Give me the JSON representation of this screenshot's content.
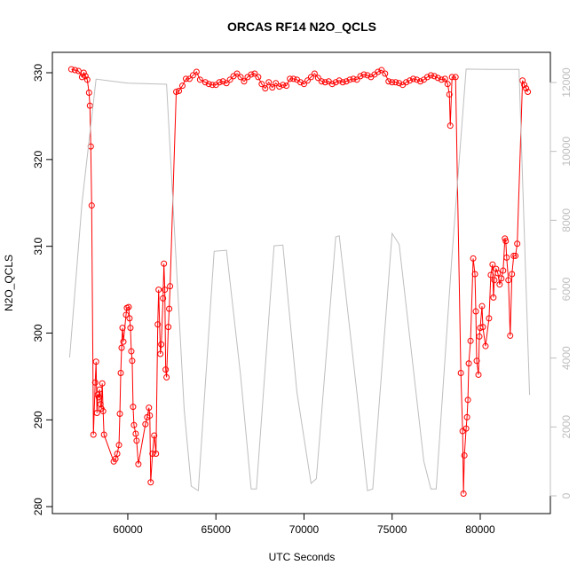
{
  "chart_data": {
    "type": "line",
    "title": "ORCAS RF14 N2O_QCLS",
    "x_label": "UTC Seconds",
    "y_label": "N2O_QCLS",
    "xlim": [
      55720,
      83980
    ],
    "ylim": [
      279.2,
      332.35
    ],
    "y2lim": [
      -515,
      12876
    ],
    "xticks": [
      60000,
      65000,
      70000,
      75000,
      80000
    ],
    "yticks": [
      280,
      290,
      300,
      310,
      320,
      330
    ],
    "y2ticks": [
      0,
      2000,
      4000,
      6000,
      8000,
      10000,
      12000
    ],
    "series": [
      {
        "color": "#ff0000",
        "points": true,
        "x": [
          56800,
          57000,
          57200,
          57400,
          57500,
          57600,
          57700,
          57800,
          57850,
          57900,
          57950,
          58050,
          58150,
          58200,
          58250,
          58300,
          58350,
          58400,
          58450,
          58500,
          58550,
          58600,
          58650,
          59200,
          59300,
          59400,
          59500,
          59550,
          59600,
          59650,
          59700,
          59750,
          59900,
          59950,
          60050,
          60100,
          60150,
          60200,
          60250,
          60300,
          60350,
          60450,
          60500,
          60600,
          61000,
          61100,
          61200,
          61250,
          61300,
          61400,
          61500,
          61600,
          61700,
          61750,
          61850,
          61900,
          62000,
          62050,
          62100,
          62150,
          62200,
          62300,
          62350,
          62400,
          62750,
          62900,
          63100,
          63300,
          63500,
          63700,
          63900,
          64100,
          64400,
          64600,
          64800,
          65000,
          65200,
          65400,
          65600,
          65800,
          66000,
          66200,
          66400,
          66600,
          66800,
          67000,
          67200,
          67400,
          67600,
          67800,
          68000,
          68200,
          68400,
          68600,
          68800,
          69000,
          69200,
          69400,
          69600,
          69800,
          70000,
          70200,
          70400,
          70600,
          70800,
          71000,
          71200,
          71400,
          71600,
          71800,
          72000,
          72200,
          72400,
          72600,
          72800,
          73000,
          73200,
          73400,
          73600,
          73800,
          74000,
          74200,
          74400,
          74600,
          74800,
          75000,
          75200,
          75400,
          75600,
          75800,
          76000,
          76200,
          76400,
          76600,
          76800,
          77000,
          77200,
          77400,
          77600,
          77800,
          78000,
          78150,
          78250,
          78300,
          78400,
          78600,
          78900,
          79000,
          79050,
          79100,
          79200,
          79250,
          79300,
          79350,
          79450,
          79600,
          79700,
          79750,
          79800,
          79900,
          79950,
          80000,
          80100,
          80150,
          80300,
          80500,
          80600,
          80700,
          80750,
          80800,
          80900,
          81000,
          81100,
          81200,
          81300,
          81400,
          81450,
          81500,
          81600,
          81700,
          81800,
          81900,
          82000,
          82100,
          82400,
          82500,
          82600,
          82700
        ],
        "values": [
          330.4,
          330.3,
          330.2,
          329.5,
          330.0,
          329.6,
          329.2,
          327.7,
          326.2,
          321.5,
          314.7,
          288.3,
          294.3,
          296.7,
          290.8,
          292.9,
          292.6,
          293.5,
          291.8,
          291.3,
          294.2,
          291.0,
          288.3,
          285.2,
          285.5,
          286.1,
          287.1,
          290.7,
          295.4,
          298.3,
          300.6,
          299.0,
          302.1,
          302.9,
          303.0,
          301.7,
          300.6,
          297.9,
          296.8,
          291.5,
          289.4,
          288.4,
          287.6,
          284.9,
          289.5,
          290.3,
          291.4,
          290.5,
          282.8,
          286.1,
          288.2,
          286.1,
          301.0,
          305.0,
          297.6,
          298.7,
          304.0,
          308.0,
          305.0,
          295.8,
          294.9,
          300.7,
          302.8,
          305.4,
          327.8,
          327.9,
          328.5,
          329.3,
          329.3,
          329.7,
          330.1,
          329.2,
          328.9,
          328.7,
          328.6,
          328.6,
          328.9,
          329.0,
          328.8,
          329.2,
          329.6,
          329.9,
          329.5,
          329.0,
          329.5,
          329.8,
          329.9,
          329.5,
          328.7,
          328.2,
          328.9,
          328.3,
          328.8,
          328.4,
          328.6,
          328.5,
          329.3,
          329.3,
          329.2,
          328.9,
          328.7,
          329.1,
          329.5,
          329.9,
          329.4,
          329.0,
          328.9,
          329.0,
          328.7,
          328.9,
          329.1,
          328.9,
          329.0,
          329.2,
          329.3,
          329.2,
          329.6,
          329.8,
          329.7,
          329.5,
          329.8,
          330.1,
          330.3,
          329.9,
          329.0,
          328.9,
          328.9,
          328.8,
          328.6,
          328.9,
          329.1,
          329.3,
          329.2,
          329.0,
          329.2,
          329.5,
          329.7,
          329.6,
          329.4,
          329.2,
          329.3,
          328.7,
          327.5,
          323.9,
          329.5,
          329.5,
          295.4,
          288.7,
          281.5,
          285.9,
          289.0,
          290.3,
          292.3,
          296.5,
          299.1,
          308.6,
          306.8,
          302.5,
          296.8,
          295.2,
          299.6,
          300.6,
          303.1,
          300.7,
          298.5,
          301.7,
          306.7,
          307.9,
          304.1,
          306.1,
          307.4,
          306.9,
          305.6,
          306.3,
          307.2,
          310.9,
          310.6,
          308.7,
          306.1,
          299.7,
          306.8,
          308.9,
          308.9,
          310.3,
          329.1,
          328.6,
          328.2,
          327.8
        ]
      },
      {
        "color": "#bebebe",
        "axis": "y2",
        "x": [
          56700,
          57400,
          58200,
          60000,
          62200,
          63200,
          63600,
          64000,
          64900,
          65600,
          66400,
          67000,
          67300,
          68300,
          68800,
          69600,
          70400,
          70700,
          71800,
          72000,
          73000,
          73600,
          73900,
          75000,
          75400,
          76800,
          77200,
          77500,
          78400,
          79200,
          80500,
          82200,
          82800
        ],
        "values": [
          4017,
          8500,
          12100,
          11980,
          11950,
          2500,
          280,
          150,
          7100,
          7130,
          3500,
          200,
          200,
          7260,
          7280,
          3000,
          360,
          500,
          7520,
          7550,
          3000,
          150,
          200,
          7620,
          7300,
          1000,
          200,
          200,
          7000,
          12390,
          12380,
          12380,
          2930
        ]
      }
    ]
  }
}
